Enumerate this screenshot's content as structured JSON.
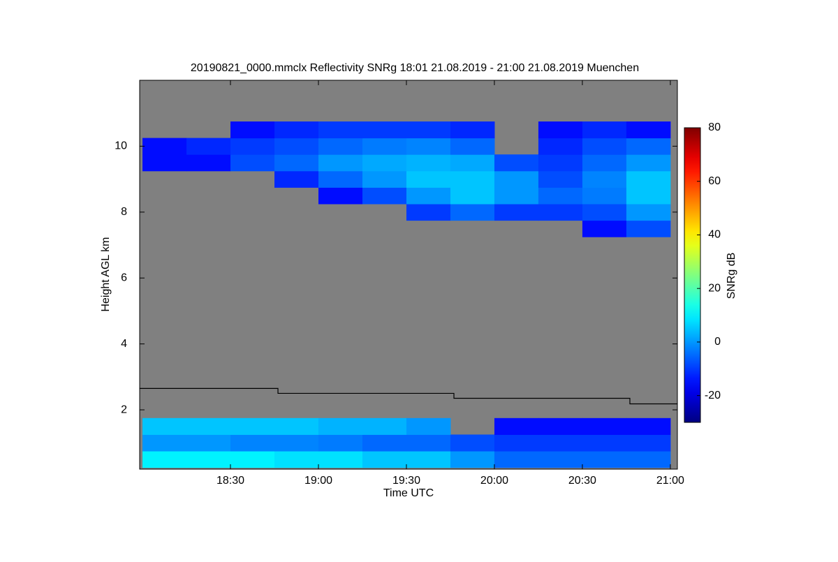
{
  "chart_data": {
    "type": "heatmap",
    "title": "20190821_0000.mmclx Reflectivity SNRg   18:01 21.08.2019 - 21:00 21.08.2019 Muenchen",
    "x_label": "Time UTC",
    "y_label": "Height AGL km",
    "colorbar_label": "SNRg dB",
    "colormap": "jet",
    "background": "#808080",
    "xlim": [
      17.984,
      21.04
    ],
    "ylim": [
      0.2,
      12.0
    ],
    "xticks": [
      {
        "value": 18.5,
        "label": "18:30"
      },
      {
        "value": 19.0,
        "label": "19:00"
      },
      {
        "value": 19.5,
        "label": "19:30"
      },
      {
        "value": 20.0,
        "label": "20:00"
      },
      {
        "value": 20.5,
        "label": "20:30"
      },
      {
        "value": 21.0,
        "label": "21:00"
      }
    ],
    "yticks": [
      2,
      4,
      6,
      8,
      10
    ],
    "zlim": [
      -30,
      80
    ],
    "zticks": [
      -20,
      0,
      20,
      40,
      60,
      80
    ],
    "x": [
      18.125,
      18.375,
      18.625,
      18.875,
      19.125,
      19.375,
      19.625,
      19.875,
      20.125,
      20.375,
      20.625,
      20.875
    ],
    "y": [
      0.5,
      1.0,
      1.5,
      2.0,
      2.5,
      3.0,
      3.5,
      4.0,
      4.5,
      5.0,
      5.5,
      6.0,
      6.5,
      7.0,
      7.5,
      8.0,
      8.5,
      9.0,
      9.5,
      10.0,
      10.5,
      11.0,
      11.5
    ],
    "z": [
      [
        10,
        10,
        10,
        8,
        8,
        5,
        5,
        0,
        -5,
        -5,
        -5,
        -5
      ],
      [
        0,
        0,
        -2,
        -2,
        -3,
        -5,
        -5,
        -8,
        -10,
        -10,
        -10,
        -10
      ],
      [
        5,
        5,
        5,
        5,
        3,
        3,
        0,
        null,
        -15,
        -15,
        -15,
        -15
      ],
      [
        null,
        null,
        null,
        null,
        null,
        null,
        null,
        null,
        null,
        null,
        null,
        null
      ],
      [
        null,
        null,
        null,
        null,
        null,
        null,
        null,
        null,
        null,
        null,
        null,
        null
      ],
      [
        null,
        null,
        null,
        null,
        null,
        null,
        null,
        null,
        null,
        null,
        null,
        null
      ],
      [
        null,
        null,
        null,
        null,
        null,
        null,
        null,
        null,
        null,
        null,
        null,
        null
      ],
      [
        null,
        null,
        null,
        null,
        null,
        null,
        null,
        null,
        null,
        null,
        null,
        null
      ],
      [
        null,
        null,
        null,
        null,
        null,
        null,
        null,
        null,
        null,
        null,
        null,
        null
      ],
      [
        null,
        null,
        null,
        null,
        null,
        null,
        null,
        null,
        null,
        null,
        null,
        null
      ],
      [
        null,
        null,
        null,
        null,
        null,
        null,
        null,
        null,
        null,
        null,
        null,
        null
      ],
      [
        null,
        null,
        null,
        null,
        null,
        null,
        null,
        null,
        null,
        null,
        null,
        null
      ],
      [
        null,
        null,
        null,
        null,
        null,
        null,
        null,
        null,
        null,
        null,
        null,
        null
      ],
      [
        null,
        null,
        null,
        null,
        null,
        null,
        null,
        null,
        null,
        null,
        null,
        null
      ],
      [
        null,
        null,
        null,
        null,
        null,
        null,
        null,
        null,
        null,
        null,
        -15,
        -8
      ],
      [
        null,
        null,
        null,
        null,
        null,
        null,
        -10,
        -5,
        -10,
        -10,
        -8,
        0
      ],
      [
        null,
        null,
        null,
        null,
        -15,
        -8,
        0,
        5,
        0,
        -5,
        -3,
        5
      ],
      [
        null,
        null,
        null,
        -12,
        -5,
        0,
        5,
        5,
        0,
        -8,
        -2,
        5
      ],
      [
        -15,
        -15,
        -8,
        -5,
        0,
        2,
        3,
        2,
        -8,
        -10,
        -5,
        0
      ],
      [
        -15,
        -12,
        -10,
        -8,
        -5,
        -3,
        -2,
        -5,
        null,
        -12,
        -8,
        -5
      ],
      [
        null,
        null,
        -15,
        -12,
        -10,
        -10,
        -10,
        -12,
        null,
        -15,
        -12,
        -15
      ],
      [
        null,
        null,
        null,
        null,
        null,
        null,
        null,
        null,
        null,
        null,
        null,
        null
      ],
      [
        null,
        null,
        null,
        null,
        null,
        null,
        null,
        null,
        null,
        null,
        null,
        null
      ]
    ],
    "line": {
      "color": "#000000",
      "x": [
        17.984,
        18.77,
        18.77,
        19.77,
        19.77,
        20.77,
        20.77,
        21.04
      ],
      "values": [
        2.65,
        2.65,
        2.5,
        2.5,
        2.35,
        2.35,
        2.18,
        2.18
      ]
    }
  }
}
